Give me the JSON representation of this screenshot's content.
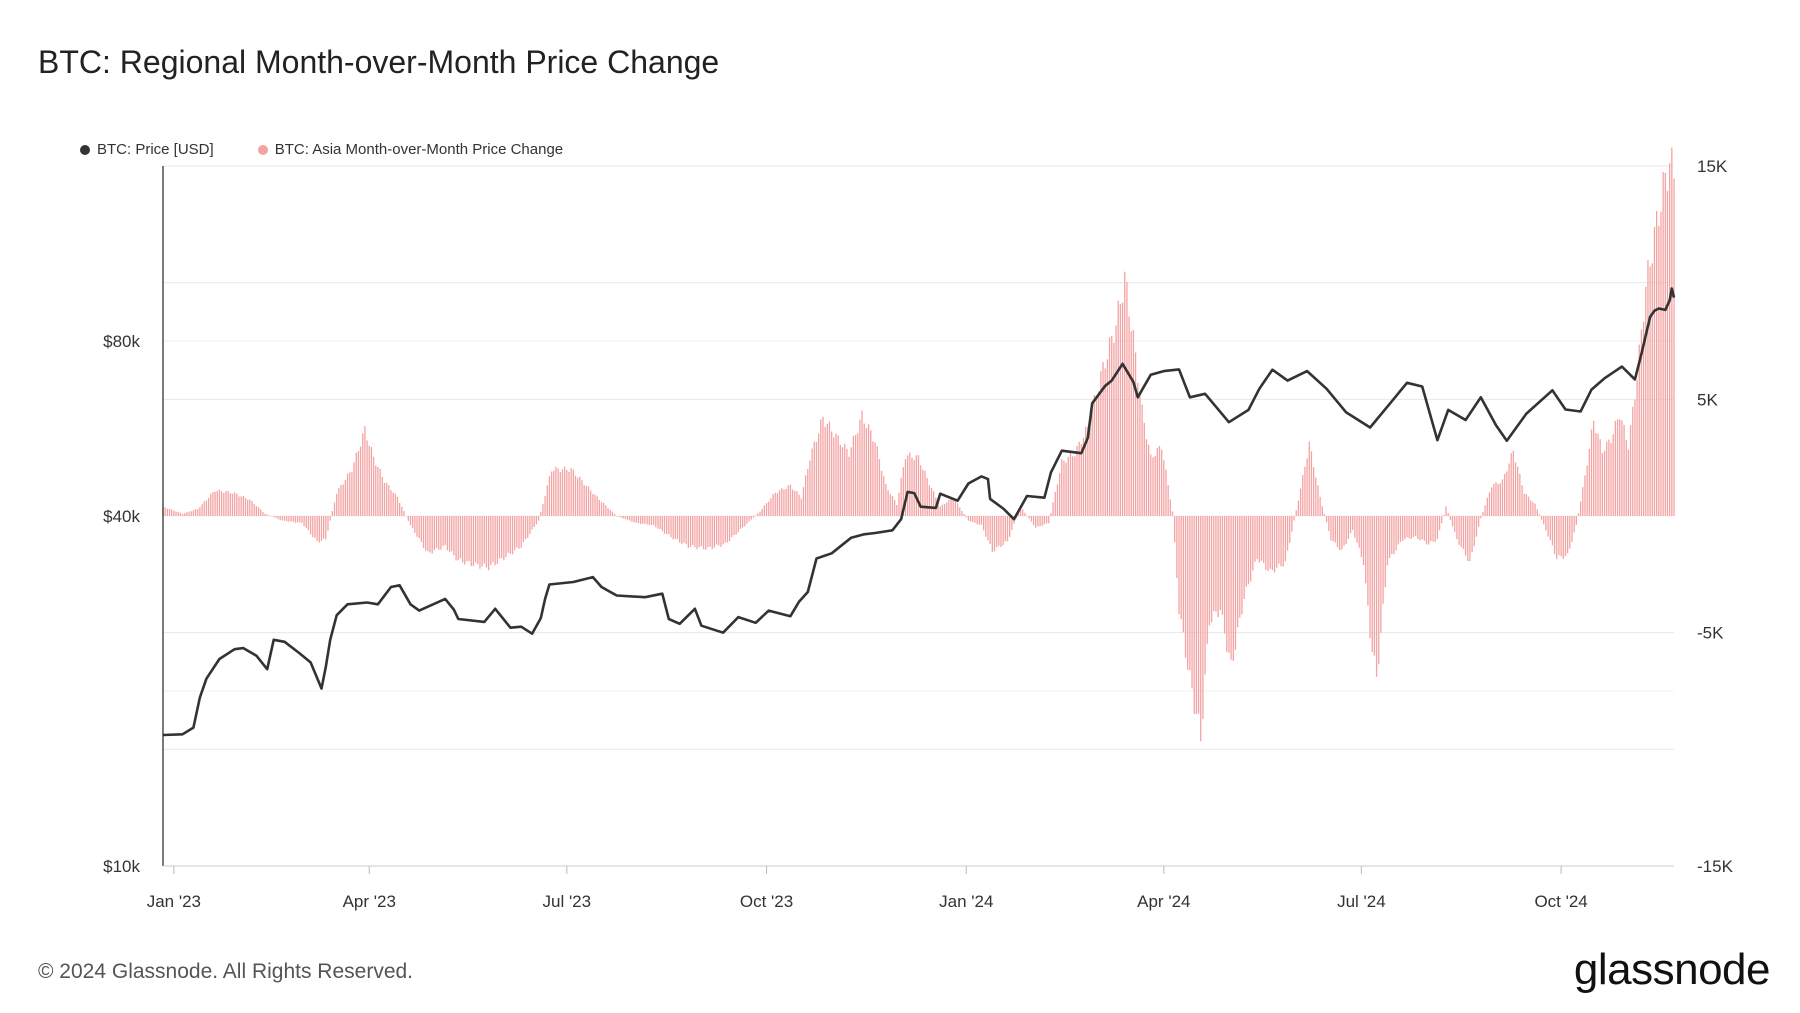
{
  "title": "BTC: Regional Month-over-Month Price Change",
  "legend": {
    "price_label": "BTC: Price [USD]",
    "change_label": "BTC: Asia Month-over-Month Price Change"
  },
  "colors": {
    "price": "#333333",
    "change": "#f4a3a3",
    "change_dot": "#f4a3a3",
    "grid": "#e8e8e8",
    "axis": "#222222"
  },
  "footer": "© 2024 Glassnode. All Rights Reserved.",
  "brand": "glassnode",
  "chart_data": {
    "type": "line+bar",
    "title": "BTC: Regional Month-over-Month Price Change",
    "x_range": [
      "2022-12-27",
      "2024-11-22"
    ],
    "x_ticks": [
      "Jan '23",
      "Apr '23",
      "Jul '23",
      "Oct '23",
      "Jan '24",
      "Apr '24",
      "Jul '24",
      "Oct '24"
    ],
    "left_axis": {
      "scale": "log",
      "min": 10000,
      "max": 160000,
      "ticks": [
        "$10k",
        "$40k",
        "$80k"
      ],
      "tick_values": [
        10000,
        40000,
        80000
      ]
    },
    "right_axis": {
      "scale": "linear",
      "min": -15000,
      "max": 15000,
      "ticks": [
        "-15K",
        "-5K",
        "5K",
        "15K"
      ],
      "tick_values": [
        -15000,
        -5000,
        5000,
        15000
      ]
    },
    "series": [
      {
        "name": "BTC: Price [USD]",
        "axis": "left",
        "kind": "line",
        "points": [
          [
            "2022-12-27",
            16800
          ],
          [
            "2023-01-05",
            16850
          ],
          [
            "2023-01-10",
            17300
          ],
          [
            "2023-01-13",
            19500
          ],
          [
            "2023-01-16",
            21000
          ],
          [
            "2023-01-22",
            22700
          ],
          [
            "2023-01-29",
            23600
          ],
          [
            "2023-02-02",
            23700
          ],
          [
            "2023-02-08",
            23000
          ],
          [
            "2023-02-13",
            21800
          ],
          [
            "2023-02-16",
            24500
          ],
          [
            "2023-02-21",
            24300
          ],
          [
            "2023-02-28",
            23200
          ],
          [
            "2023-03-05",
            22400
          ],
          [
            "2023-03-10",
            20200
          ],
          [
            "2023-03-12",
            22000
          ],
          [
            "2023-03-14",
            24500
          ],
          [
            "2023-03-17",
            27000
          ],
          [
            "2023-03-22",
            28200
          ],
          [
            "2023-03-31",
            28400
          ],
          [
            "2023-04-05",
            28200
          ],
          [
            "2023-04-11",
            30200
          ],
          [
            "2023-04-15",
            30400
          ],
          [
            "2023-04-20",
            28200
          ],
          [
            "2023-04-24",
            27500
          ],
          [
            "2023-05-06",
            28800
          ],
          [
            "2023-05-10",
            27600
          ],
          [
            "2023-05-12",
            26600
          ],
          [
            "2023-05-24",
            26300
          ],
          [
            "2023-05-29",
            27700
          ],
          [
            "2023-06-05",
            25700
          ],
          [
            "2023-06-10",
            25800
          ],
          [
            "2023-06-15",
            25100
          ],
          [
            "2023-06-19",
            26700
          ],
          [
            "2023-06-21",
            28800
          ],
          [
            "2023-06-23",
            30500
          ],
          [
            "2023-07-04",
            30800
          ],
          [
            "2023-07-13",
            31400
          ],
          [
            "2023-07-17",
            30200
          ],
          [
            "2023-07-24",
            29200
          ],
          [
            "2023-08-06",
            29000
          ],
          [
            "2023-08-14",
            29400
          ],
          [
            "2023-08-17",
            26600
          ],
          [
            "2023-08-22",
            26100
          ],
          [
            "2023-08-29",
            27700
          ],
          [
            "2023-09-01",
            25900
          ],
          [
            "2023-09-11",
            25200
          ],
          [
            "2023-09-18",
            26800
          ],
          [
            "2023-09-26",
            26200
          ],
          [
            "2023-10-02",
            27500
          ],
          [
            "2023-10-12",
            26900
          ],
          [
            "2023-10-16",
            28500
          ],
          [
            "2023-10-20",
            29600
          ],
          [
            "2023-10-24",
            33800
          ],
          [
            "2023-10-31",
            34500
          ],
          [
            "2023-11-09",
            36700
          ],
          [
            "2023-11-15",
            37200
          ],
          [
            "2023-11-20",
            37400
          ],
          [
            "2023-11-28",
            37800
          ],
          [
            "2023-12-02",
            39500
          ],
          [
            "2023-12-05",
            44000
          ],
          [
            "2023-12-08",
            43800
          ],
          [
            "2023-12-11",
            41500
          ],
          [
            "2023-12-18",
            41300
          ],
          [
            "2023-12-20",
            43700
          ],
          [
            "2023-12-28",
            42500
          ],
          [
            "2024-01-02",
            45500
          ],
          [
            "2024-01-08",
            46800
          ],
          [
            "2024-01-11",
            46300
          ],
          [
            "2024-01-12",
            42800
          ],
          [
            "2024-01-18",
            41200
          ],
          [
            "2024-01-23",
            39500
          ],
          [
            "2024-01-29",
            43300
          ],
          [
            "2024-02-06",
            43000
          ],
          [
            "2024-02-09",
            47500
          ],
          [
            "2024-02-14",
            51800
          ],
          [
            "2024-02-23",
            51300
          ],
          [
            "2024-02-26",
            54500
          ],
          [
            "2024-02-28",
            62500
          ],
          [
            "2024-03-05",
            67000
          ],
          [
            "2024-03-08",
            68400
          ],
          [
            "2024-03-13",
            73100
          ],
          [
            "2024-03-18",
            68000
          ],
          [
            "2024-03-20",
            64000
          ],
          [
            "2024-03-26",
            70000
          ],
          [
            "2024-04-01",
            71000
          ],
          [
            "2024-04-08",
            71500
          ],
          [
            "2024-04-13",
            64000
          ],
          [
            "2024-04-20",
            64900
          ],
          [
            "2024-05-01",
            58000
          ],
          [
            "2024-05-10",
            60900
          ],
          [
            "2024-05-15",
            66200
          ],
          [
            "2024-05-21",
            71400
          ],
          [
            "2024-05-28",
            68400
          ],
          [
            "2024-06-06",
            71000
          ],
          [
            "2024-06-15",
            66200
          ],
          [
            "2024-06-24",
            60300
          ],
          [
            "2024-07-05",
            56800
          ],
          [
            "2024-07-15",
            63000
          ],
          [
            "2024-07-22",
            67800
          ],
          [
            "2024-07-29",
            66800
          ],
          [
            "2024-08-05",
            54000
          ],
          [
            "2024-08-10",
            60900
          ],
          [
            "2024-08-18",
            58500
          ],
          [
            "2024-08-25",
            64000
          ],
          [
            "2024-09-01",
            57300
          ],
          [
            "2024-09-06",
            53900
          ],
          [
            "2024-09-15",
            60000
          ],
          [
            "2024-09-27",
            65800
          ],
          [
            "2024-10-03",
            61000
          ],
          [
            "2024-10-10",
            60500
          ],
          [
            "2024-10-15",
            66000
          ],
          [
            "2024-10-21",
            69000
          ],
          [
            "2024-10-29",
            72300
          ],
          [
            "2024-11-04",
            68700
          ],
          [
            "2024-11-07",
            76000
          ],
          [
            "2024-11-11",
            88000
          ],
          [
            "2024-11-13",
            90200
          ],
          [
            "2024-11-15",
            91000
          ],
          [
            "2024-11-18",
            90500
          ],
          [
            "2024-11-20",
            94000
          ],
          [
            "2024-11-21",
            98500
          ],
          [
            "2024-11-22",
            95000
          ]
        ]
      },
      {
        "name": "BTC: Asia Month-over-Month Price Change",
        "axis": "right",
        "kind": "bar",
        "knots": [
          [
            "2022-12-27",
            400
          ],
          [
            "2023-01-05",
            100
          ],
          [
            "2023-01-12",
            300
          ],
          [
            "2023-01-20",
            1100
          ],
          [
            "2023-01-28",
            1000
          ],
          [
            "2023-02-05",
            700
          ],
          [
            "2023-02-12",
            100
          ],
          [
            "2023-02-20",
            -200
          ],
          [
            "2023-03-01",
            -300
          ],
          [
            "2023-03-08",
            -1100
          ],
          [
            "2023-03-12",
            -1000
          ],
          [
            "2023-03-17",
            1000
          ],
          [
            "2023-03-24",
            2000
          ],
          [
            "2023-03-30",
            3700
          ],
          [
            "2023-04-03",
            2500
          ],
          [
            "2023-04-08",
            1500
          ],
          [
            "2023-04-14",
            800
          ],
          [
            "2023-04-20",
            -400
          ],
          [
            "2023-04-28",
            -1600
          ],
          [
            "2023-05-06",
            -1300
          ],
          [
            "2023-05-12",
            -1900
          ],
          [
            "2023-05-20",
            -2100
          ],
          [
            "2023-05-26",
            -2200
          ],
          [
            "2023-06-02",
            -1800
          ],
          [
            "2023-06-10",
            -1300
          ],
          [
            "2023-06-18",
            -200
          ],
          [
            "2023-06-24",
            2000
          ],
          [
            "2023-07-03",
            2000
          ],
          [
            "2023-07-08",
            1500
          ],
          [
            "2023-07-15",
            800
          ],
          [
            "2023-07-24",
            0
          ],
          [
            "2023-08-02",
            -300
          ],
          [
            "2023-08-10",
            -400
          ],
          [
            "2023-08-18",
            -900
          ],
          [
            "2023-08-26",
            -1300
          ],
          [
            "2023-09-04",
            -1400
          ],
          [
            "2023-09-12",
            -1200
          ],
          [
            "2023-09-20",
            -500
          ],
          [
            "2023-09-28",
            200
          ],
          [
            "2023-10-05",
            1000
          ],
          [
            "2023-10-12",
            1300
          ],
          [
            "2023-10-17",
            800
          ],
          [
            "2023-10-21",
            2500
          ],
          [
            "2023-10-27",
            4200
          ],
          [
            "2023-11-03",
            3300
          ],
          [
            "2023-11-08",
            2700
          ],
          [
            "2023-11-14",
            4300
          ],
          [
            "2023-11-20",
            3200
          ],
          [
            "2023-11-25",
            1300
          ],
          [
            "2023-11-30",
            500
          ],
          [
            "2023-12-04",
            2600
          ],
          [
            "2023-12-10",
            2500
          ],
          [
            "2023-12-14",
            1600
          ],
          [
            "2023-12-20",
            400
          ],
          [
            "2023-12-26",
            800
          ],
          [
            "2024-01-02",
            -200
          ],
          [
            "2024-01-08",
            -400
          ],
          [
            "2024-01-13",
            -1500
          ],
          [
            "2024-01-20",
            -1100
          ],
          [
            "2024-01-26",
            400
          ],
          [
            "2024-02-02",
            -500
          ],
          [
            "2024-02-08",
            -300
          ],
          [
            "2024-02-14",
            2300
          ],
          [
            "2024-02-20",
            2700
          ],
          [
            "2024-02-26",
            3800
          ],
          [
            "2024-03-03",
            6000
          ],
          [
            "2024-03-10",
            8200
          ],
          [
            "2024-03-14",
            10200
          ],
          [
            "2024-03-18",
            7600
          ],
          [
            "2024-03-22",
            4500
          ],
          [
            "2024-03-26",
            2500
          ],
          [
            "2024-03-31",
            3000
          ],
          [
            "2024-04-05",
            200
          ],
          [
            "2024-04-08",
            -4000
          ],
          [
            "2024-04-13",
            -7000
          ],
          [
            "2024-04-18",
            -9500
          ],
          [
            "2024-04-22",
            -4500
          ],
          [
            "2024-04-27",
            -4000
          ],
          [
            "2024-05-02",
            -6500
          ],
          [
            "2024-05-08",
            -3500
          ],
          [
            "2024-05-14",
            -1800
          ],
          [
            "2024-05-20",
            -2400
          ],
          [
            "2024-05-27",
            -2000
          ],
          [
            "2024-06-02",
            700
          ],
          [
            "2024-06-07",
            3100
          ],
          [
            "2024-06-12",
            800
          ],
          [
            "2024-06-17",
            -1000
          ],
          [
            "2024-06-22",
            -1500
          ],
          [
            "2024-06-27",
            -600
          ],
          [
            "2024-07-02",
            -2000
          ],
          [
            "2024-07-05",
            -5000
          ],
          [
            "2024-07-08",
            -7000
          ],
          [
            "2024-07-13",
            -2000
          ],
          [
            "2024-07-20",
            -1000
          ],
          [
            "2024-07-26",
            -900
          ],
          [
            "2024-08-01",
            -1200
          ],
          [
            "2024-08-05",
            -1000
          ],
          [
            "2024-08-09",
            400
          ],
          [
            "2024-08-14",
            -1000
          ],
          [
            "2024-08-20",
            -2000
          ],
          [
            "2024-08-25",
            -100
          ],
          [
            "2024-08-30",
            1300
          ],
          [
            "2024-09-04",
            1500
          ],
          [
            "2024-09-09",
            2800
          ],
          [
            "2024-09-14",
            1000
          ],
          [
            "2024-09-19",
            500
          ],
          [
            "2024-09-24",
            -600
          ],
          [
            "2024-09-29",
            -1800
          ],
          [
            "2024-10-04",
            -1700
          ],
          [
            "2024-10-08",
            -400
          ],
          [
            "2024-10-12",
            1700
          ],
          [
            "2024-10-16",
            4100
          ],
          [
            "2024-10-20",
            2800
          ],
          [
            "2024-10-24",
            3300
          ],
          [
            "2024-10-28",
            4400
          ],
          [
            "2024-11-01",
            3000
          ],
          [
            "2024-11-05",
            6000
          ],
          [
            "2024-11-09",
            9800
          ],
          [
            "2024-11-13",
            12000
          ],
          [
            "2024-11-17",
            14000
          ],
          [
            "2024-11-20",
            15200
          ],
          [
            "2024-11-22",
            14600
          ]
        ]
      }
    ]
  }
}
